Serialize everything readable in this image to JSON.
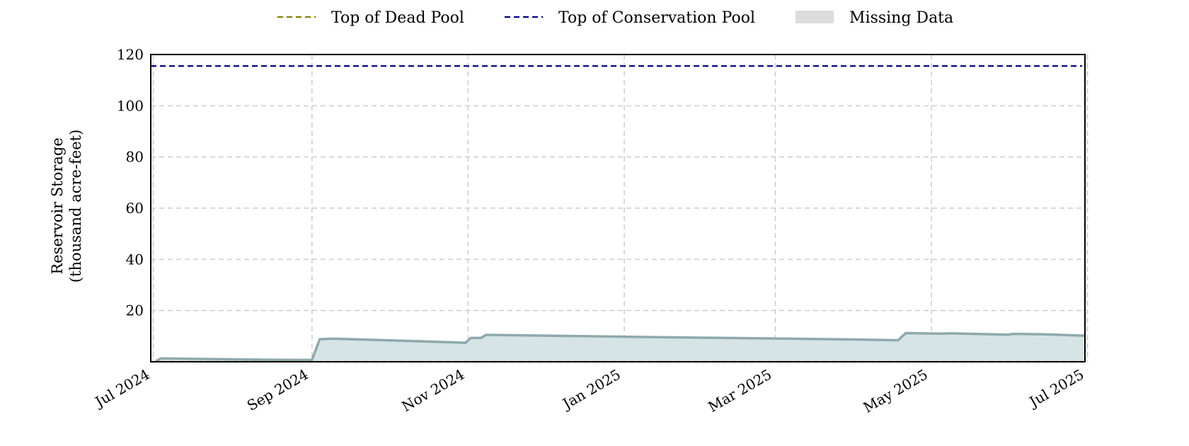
{
  "chart_data": {
    "type": "area",
    "ylabel_lines": [
      "Reservoir Storage",
      "(thousand acre-feet)"
    ],
    "xlabel": "",
    "ylim": [
      0,
      120
    ],
    "y_ticks": [
      20,
      40,
      60,
      80,
      100,
      120
    ],
    "xlim": [
      "2024-07-01",
      "2025-07-01"
    ],
    "x_ticks": [
      {
        "date": "2024-07-01",
        "label": "Jul 2024"
      },
      {
        "date": "2024-09-01",
        "label": "Sep 2024"
      },
      {
        "date": "2024-11-01",
        "label": "Nov 2024"
      },
      {
        "date": "2025-01-01",
        "label": "Jan 2025"
      },
      {
        "date": "2025-03-01",
        "label": "Mar 2025"
      },
      {
        "date": "2025-05-01",
        "label": "May 2025"
      },
      {
        "date": "2025-07-01",
        "label": "Jul 2025"
      }
    ],
    "grid": true,
    "legend_position": "top",
    "legend": [
      {
        "label": "Top of Dead Pool",
        "style": "dashed-line",
        "color": "#8b8000"
      },
      {
        "label": "Top of Conservation Pool",
        "style": "dashed-line",
        "color": "#00008b"
      },
      {
        "label": "Missing Data",
        "style": "patch",
        "color": "#dcdcdc"
      }
    ],
    "reference_lines": [
      {
        "name": "Top of Dead Pool",
        "y": 0,
        "color": "#8b8000"
      },
      {
        "name": "Top of Conservation Pool",
        "y": 115.5,
        "color": "#00008b"
      }
    ],
    "series": [
      {
        "line_color": "#8fa9ae",
        "fill_color": "#d6e4e6",
        "points": [
          [
            "2024-07-03",
            0.2
          ],
          [
            "2024-07-05",
            1.3
          ],
          [
            "2024-08-15",
            0.8
          ],
          [
            "2024-09-02",
            0.7
          ],
          [
            "2024-09-05",
            8.8
          ],
          [
            "2024-09-10",
            9.0
          ],
          [
            "2024-10-15",
            8.0
          ],
          [
            "2024-11-01",
            7.4
          ],
          [
            "2024-11-03",
            9.3
          ],
          [
            "2024-11-07",
            9.3
          ],
          [
            "2024-11-09",
            10.5
          ],
          [
            "2024-12-15",
            10.0
          ],
          [
            "2025-02-01",
            9.4
          ],
          [
            "2025-04-01",
            8.7
          ],
          [
            "2025-04-19",
            8.4
          ],
          [
            "2025-04-22",
            11.2
          ],
          [
            "2025-05-05",
            11.0
          ],
          [
            "2025-05-10",
            11.1
          ],
          [
            "2025-06-01",
            10.6
          ],
          [
            "2025-06-03",
            10.9
          ],
          [
            "2025-06-15",
            10.7
          ],
          [
            "2025-07-01",
            10.2
          ]
        ]
      }
    ]
  }
}
